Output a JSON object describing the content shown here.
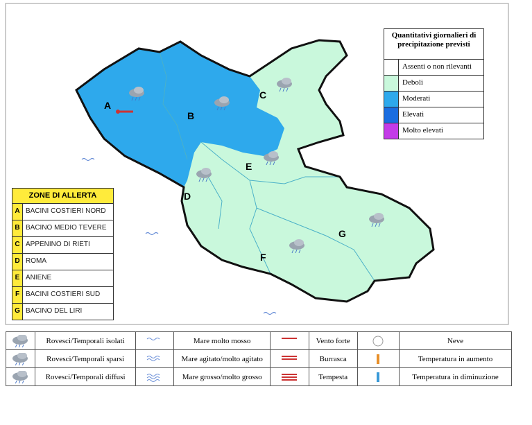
{
  "precipitation_legend": {
    "title": "Quantitativi giornalieri di precipitazione previsti",
    "items": [
      {
        "label": "Assenti o non rilevanti",
        "color": "#ffffff"
      },
      {
        "label": "Deboli",
        "color": "#c9f8dc"
      },
      {
        "label": "Moderati",
        "color": "#2ea9ec"
      },
      {
        "label": "Elevati",
        "color": "#1a6de0"
      },
      {
        "label": "Molto elevati",
        "color": "#c43be8"
      }
    ]
  },
  "alert_zones": {
    "title": "ZONE DI ALLERTA",
    "zones": [
      {
        "letter": "A",
        "name": "BACINI COSTIERI NORD"
      },
      {
        "letter": "B",
        "name": "BACINO MEDIO TEVERE"
      },
      {
        "letter": "C",
        "name": "APPENINO DI RIETI"
      },
      {
        "letter": "D",
        "name": "ROMA"
      },
      {
        "letter": "E",
        "name": "ANIENE"
      },
      {
        "letter": "F",
        "name": "BACINI COSTIERI SUD"
      },
      {
        "letter": "G",
        "name": "BACINO DEL LIRI"
      }
    ]
  },
  "symbol_legend": {
    "rows": [
      [
        "Rovesci/Temporali isolati",
        "Mare molto mosso",
        "Vento forte",
        "Neve"
      ],
      [
        "Rovesci/Temporali sparsi",
        "Mare agitato/molto agitato",
        "Burrasca",
        "Temperatura in aumento"
      ],
      [
        "Rovesci/Temporali diffusi",
        "Mare grosso/molto grosso",
        "Tempesta",
        "Temperatura in diminuzione"
      ]
    ]
  }
}
